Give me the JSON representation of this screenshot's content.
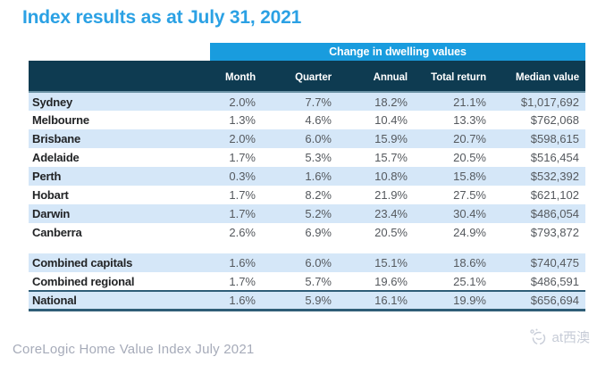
{
  "page": {
    "title": "Index results as at July 31, 2021",
    "footer": "CoreLogic Home Value Index July 2021",
    "watermark_text": "at西澳"
  },
  "colors": {
    "title_blue": "#2BA1E4",
    "banner_blue": "#199CDE",
    "header_navy": "#0E3B51",
    "row_shade_blue": "#D5E7F8",
    "total_border_blue": "#2F5D77",
    "footer_gray": "#A6ABB9"
  },
  "table": {
    "banner": "Change in dwelling values",
    "columns": [
      "Month",
      "Quarter",
      "Annual",
      "Total return",
      "Median value"
    ],
    "rows": [
      {
        "name": "Sydney",
        "month": "2.0%",
        "quarter": "7.7%",
        "annual": "18.2%",
        "total_return": "21.1%",
        "median_value": "$1,017,692",
        "group": "capital"
      },
      {
        "name": "Melbourne",
        "month": "1.3%",
        "quarter": "4.6%",
        "annual": "10.4%",
        "total_return": "13.3%",
        "median_value": "$762,068",
        "group": "capital"
      },
      {
        "name": "Brisbane",
        "month": "2.0%",
        "quarter": "6.0%",
        "annual": "15.9%",
        "total_return": "20.7%",
        "median_value": "$598,615",
        "group": "capital"
      },
      {
        "name": "Adelaide",
        "month": "1.7%",
        "quarter": "5.3%",
        "annual": "15.7%",
        "total_return": "20.5%",
        "median_value": "$516,454",
        "group": "capital"
      },
      {
        "name": "Perth",
        "month": "0.3%",
        "quarter": "1.6%",
        "annual": "10.8%",
        "total_return": "15.8%",
        "median_value": "$532,392",
        "group": "capital"
      },
      {
        "name": "Hobart",
        "month": "1.7%",
        "quarter": "8.2%",
        "annual": "21.9%",
        "total_return": "27.5%",
        "median_value": "$621,102",
        "group": "capital"
      },
      {
        "name": "Darwin",
        "month": "1.7%",
        "quarter": "5.2%",
        "annual": "23.4%",
        "total_return": "30.4%",
        "median_value": "$486,054",
        "group": "capital"
      },
      {
        "name": "Canberra",
        "month": "2.6%",
        "quarter": "6.9%",
        "annual": "20.5%",
        "total_return": "24.9%",
        "median_value": "$793,872",
        "group": "capital"
      },
      {
        "name": "Combined capitals",
        "month": "1.6%",
        "quarter": "6.0%",
        "annual": "15.1%",
        "total_return": "18.6%",
        "median_value": "$740,475",
        "group": "combined"
      },
      {
        "name": "Combined regional",
        "month": "1.7%",
        "quarter": "5.7%",
        "annual": "19.6%",
        "total_return": "25.1%",
        "median_value": "$486,591",
        "group": "combined"
      },
      {
        "name": "National",
        "month": "1.6%",
        "quarter": "5.9%",
        "annual": "16.1%",
        "total_return": "19.9%",
        "median_value": "$656,694",
        "group": "national"
      }
    ]
  }
}
